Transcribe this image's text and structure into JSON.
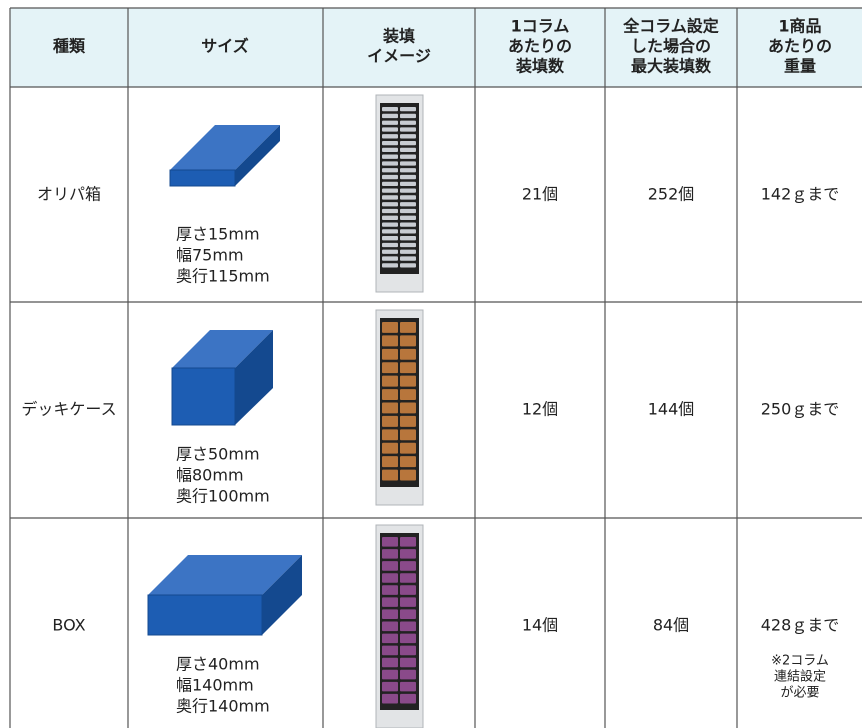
{
  "table": {
    "header": [
      [
        "種類"
      ],
      [
        "サイズ"
      ],
      [
        "装填",
        "イメージ"
      ],
      [
        "1コラム",
        "あたりの",
        "装填数"
      ],
      [
        "全コラム設定",
        "した場合の",
        "最大装填数"
      ],
      [
        "1商品",
        "あたりの",
        "重量"
      ]
    ],
    "rows": [
      {
        "type": "オリパ箱",
        "size": [
          "厚さ15mm",
          "幅75mm",
          "奥行115mm"
        ],
        "per_column": "21個",
        "max_total": "252個",
        "weight": "142ｇまで"
      },
      {
        "type": "デッキケース",
        "size": [
          "厚さ50mm",
          "幅80mm",
          "奥行100mm"
        ],
        "per_column": "12個",
        "max_total": "144個",
        "weight": "250ｇまで"
      },
      {
        "type": "BOX",
        "size": [
          "厚さ40mm",
          "幅140mm",
          "奥行140mm"
        ],
        "per_column": "14個",
        "max_total": "84個",
        "weight": "428ｇまで",
        "note": [
          "※2コラム",
          "連結設定",
          "が必要"
        ]
      }
    ]
  }
}
